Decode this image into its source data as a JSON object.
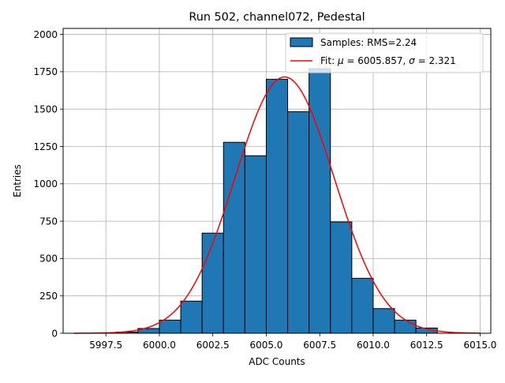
{
  "chart_data": {
    "type": "bar",
    "title": "Run 502, channel072, Pedestal",
    "xlabel": "ADC Counts",
    "ylabel": "Entries",
    "xlim": [
      5995.5,
      6015.5
    ],
    "ylim": [
      0,
      2040
    ],
    "grid": true,
    "legend_placement": "top-right",
    "x_ticks": [
      {
        "value": 5997.5,
        "label": "5997.5"
      },
      {
        "value": 6000.0,
        "label": "6000.0"
      },
      {
        "value": 6002.5,
        "label": "6002.5"
      },
      {
        "value": 6005.0,
        "label": "6005.0"
      },
      {
        "value": 6007.5,
        "label": "6007.5"
      },
      {
        "value": 6010.0,
        "label": "6010.0"
      },
      {
        "value": 6012.5,
        "label": "6012.5"
      },
      {
        "value": 6015.0,
        "label": "6015.0"
      }
    ],
    "y_ticks": [
      {
        "value": 0,
        "label": "0"
      },
      {
        "value": 250,
        "label": "250"
      },
      {
        "value": 500,
        "label": "500"
      },
      {
        "value": 750,
        "label": "750"
      },
      {
        "value": 1000,
        "label": "1000"
      },
      {
        "value": 1250,
        "label": "1250"
      },
      {
        "value": 1500,
        "label": "1500"
      },
      {
        "value": 1750,
        "label": "1750"
      },
      {
        "value": 2000,
        "label": "2000"
      }
    ],
    "histogram": {
      "name": "Samples: RMS=2.24",
      "color": "#1f77b4",
      "edgecolor": "#000000",
      "bins": [
        {
          "x0": 5997,
          "x1": 5998,
          "value": 3
        },
        {
          "x0": 5998,
          "x1": 5999,
          "value": 8
        },
        {
          "x0": 5999,
          "x1": 6000,
          "value": 32
        },
        {
          "x0": 6000,
          "x1": 6001,
          "value": 88
        },
        {
          "x0": 6001,
          "x1": 6002,
          "value": 215
        },
        {
          "x0": 6002,
          "x1": 6003,
          "value": 670
        },
        {
          "x0": 6003,
          "x1": 6004,
          "value": 1278
        },
        {
          "x0": 6004,
          "x1": 6005,
          "value": 1188
        },
        {
          "x0": 6005,
          "x1": 6006,
          "value": 1700
        },
        {
          "x0": 6006,
          "x1": 6007,
          "value": 1483
        },
        {
          "x0": 6007,
          "x1": 6008,
          "value": 1770
        },
        {
          "x0": 6008,
          "x1": 6009,
          "value": 745
        },
        {
          "x0": 6009,
          "x1": 6010,
          "value": 368
        },
        {
          "x0": 6010,
          "x1": 6011,
          "value": 165
        },
        {
          "x0": 6011,
          "x1": 6012,
          "value": 88
        },
        {
          "x0": 6012,
          "x1": 6013,
          "value": 35
        }
      ]
    },
    "fit": {
      "name": "Fit: μ = 6005.857, σ = 2.321",
      "legend_prefix": "Fit: ",
      "legend_mu_text": " = 6005.857, ",
      "legend_sigma_text": " = 2.321",
      "mu_symbol": "μ",
      "sigma_symbol": "σ",
      "color": "#ff0000",
      "mu": 6005.857,
      "sigma": 2.321,
      "amplitude": 1715,
      "x_range": [
        5996,
        6015
      ]
    }
  }
}
